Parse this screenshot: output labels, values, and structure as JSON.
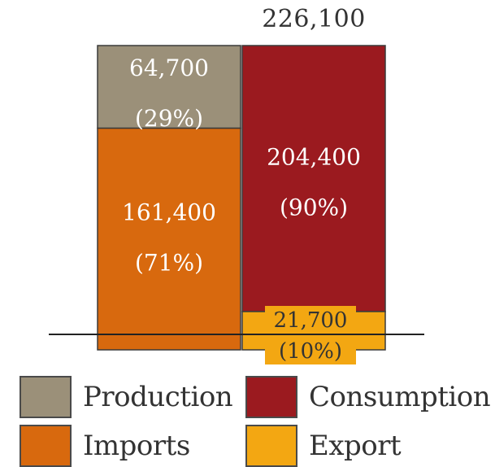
{
  "chart_data": {
    "type": "stacked-bar",
    "title": "",
    "total": {
      "value": 226100,
      "label": "226,100"
    },
    "columns": [
      {
        "name": "",
        "segments": [
          {
            "series": "Production",
            "value": 64700,
            "percent": 29,
            "value_label": "64,700",
            "percent_label": "(29%)"
          },
          {
            "series": "Imports",
            "value": 161400,
            "percent": 71,
            "value_label": "161,400",
            "percent_label": "(71%)"
          }
        ]
      },
      {
        "name": "",
        "segments": [
          {
            "series": "Consumption",
            "value": 204400,
            "percent": 90,
            "value_label": "204,400",
            "percent_label": "(90%)"
          },
          {
            "series": "Export",
            "value": 21700,
            "percent": 10,
            "value_label": "21,700",
            "percent_label": "(10%)"
          }
        ]
      }
    ],
    "colors": {
      "Production": "#9b9079",
      "Imports": "#d8690e",
      "Consumption": "#9b1a1f",
      "Export": "#f3a712"
    },
    "legend": {
      "position": "bottom",
      "items": [
        {
          "label": "Production",
          "color": "#9b9079"
        },
        {
          "label": "Consumption",
          "color": "#9b1a1f"
        },
        {
          "label": "Imports",
          "color": "#d8690e"
        },
        {
          "label": "Export",
          "color": "#f3a712"
        }
      ]
    }
  }
}
